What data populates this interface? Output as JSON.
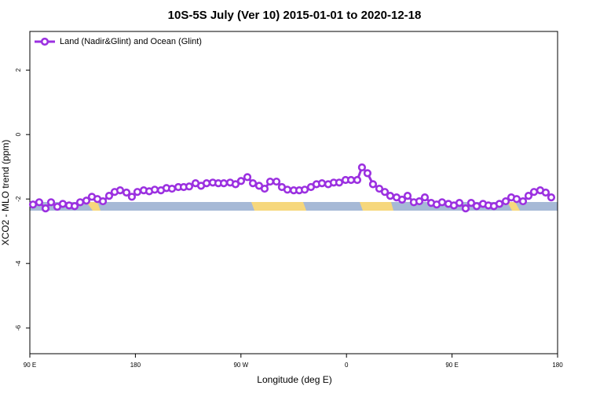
{
  "chart_data": {
    "type": "line",
    "title": "10S-5S July (Ver 10)   2015-01-01 to 2020-12-18",
    "x_label": "Longitude (deg E)",
    "y_label": "XCO2 - MLO trend (ppm)",
    "xlim": [
      90,
      540
    ],
    "xticks": [
      {
        "value": 90,
        "label": "90 E"
      },
      180,
      {
        "value": 270,
        "label": "90 W"
      },
      {
        "value": 360,
        "label": "0"
      },
      {
        "value": 450,
        "label": "90 E"
      },
      {
        "value": 540,
        "label": "180"
      }
    ],
    "ylim": [
      -6.8,
      3.2
    ],
    "yticks": [
      -6,
      -4,
      -2,
      0,
      2
    ],
    "grid": false,
    "legend": "upper left",
    "x": [
      92.7,
      98.0,
      103.4,
      108.1,
      113.4,
      118.1,
      123.5,
      128.2,
      132.9,
      138.2,
      142.9,
      147.6,
      152.3,
      157.6,
      162.3,
      167.0,
      172.4,
      177.0,
      181.7,
      187.1,
      191.8,
      196.5,
      201.8,
      206.5,
      211.2,
      216.6,
      221.2,
      225.9,
      231.3,
      236.0,
      240.7,
      246.0,
      250.7,
      255.4,
      260.8,
      265.4,
      270.1,
      275.5,
      280.2,
      285.5,
      290.2,
      294.9,
      300.3,
      304.9,
      309.6,
      315.0,
      319.7,
      324.4,
      329.7,
      334.4,
      339.1,
      344.4,
      349.1,
      353.8,
      359.2,
      363.9,
      369.2,
      373.2,
      377.9,
      382.6,
      388.0,
      392.7,
      397.3,
      402.7,
      407.4,
      412.1,
      417.4,
      422.1,
      426.8,
      432.2,
      436.9,
      441.5,
      446.9,
      451.6,
      456.3,
      461.6,
      466.3,
      471.0,
      476.4,
      481.0,
      485.7,
      490.4,
      495.8,
      500.5,
      505.1,
      510.5,
      515.2,
      519.9,
      525.2,
      529.9,
      534.6
    ],
    "series": [
      {
        "name": "Land (Nadir&Glint) and Ocean (Glint)",
        "color": "#9b30e0",
        "values": [
          -2.17,
          -2.1,
          -2.29,
          -2.1,
          -2.24,
          -2.15,
          -2.2,
          -2.22,
          -2.1,
          -2.05,
          -1.93,
          -2.0,
          -2.07,
          -1.9,
          -1.78,
          -1.73,
          -1.8,
          -1.93,
          -1.78,
          -1.73,
          -1.76,
          -1.71,
          -1.73,
          -1.66,
          -1.68,
          -1.63,
          -1.63,
          -1.61,
          -1.51,
          -1.59,
          -1.51,
          -1.49,
          -1.51,
          -1.51,
          -1.49,
          -1.54,
          -1.44,
          -1.32,
          -1.51,
          -1.59,
          -1.68,
          -1.46,
          -1.46,
          -1.63,
          -1.71,
          -1.73,
          -1.73,
          -1.71,
          -1.63,
          -1.54,
          -1.51,
          -1.54,
          -1.49,
          -1.49,
          -1.41,
          -1.41,
          -1.41,
          -1.02,
          -1.2,
          -1.54,
          -1.68,
          -1.78,
          -1.9,
          -1.95,
          -2.02,
          -1.9,
          -2.1,
          -2.07,
          -1.95,
          -2.12,
          -2.17,
          -2.1,
          -2.15,
          -2.2,
          -2.12,
          -2.29,
          -2.12,
          -2.22,
          -2.15,
          -2.2,
          -2.22,
          -2.15,
          -2.07,
          -1.95,
          -2.0,
          -2.07,
          -1.9,
          -1.78,
          -1.73,
          -1.8,
          -1.95
        ]
      }
    ]
  }
}
